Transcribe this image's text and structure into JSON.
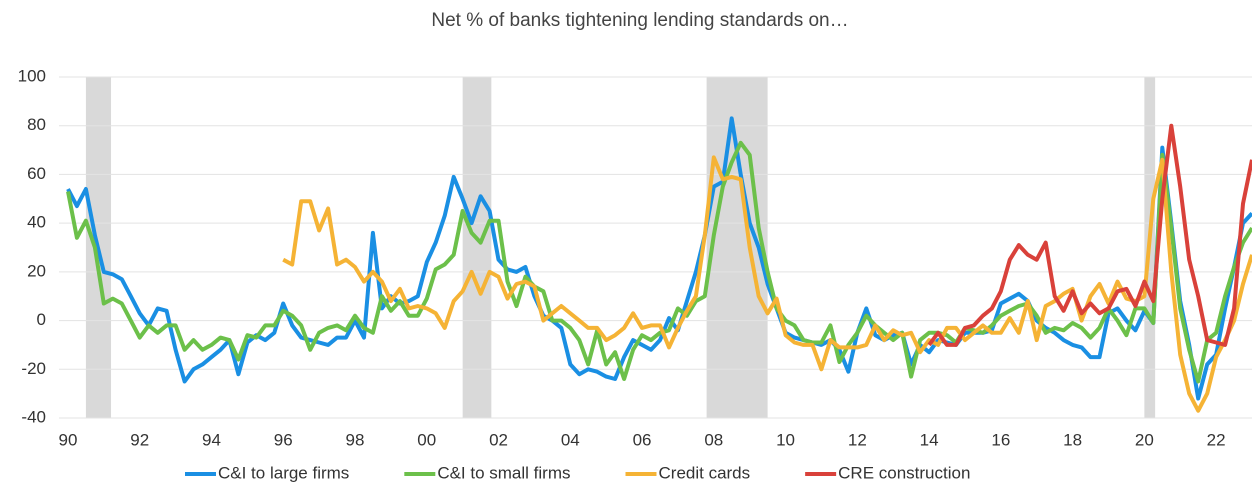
{
  "chart_data": {
    "type": "line",
    "title": "Net % of banks tightening lending standards on…",
    "x": [
      1990,
      1990.25,
      1990.5,
      1990.75,
      1991,
      1991.25,
      1991.5,
      1991.75,
      1992,
      1992.25,
      1992.5,
      1992.75,
      1993,
      1993.25,
      1993.5,
      1993.75,
      1994,
      1994.25,
      1994.5,
      1994.75,
      1995,
      1995.25,
      1995.5,
      1995.75,
      1996,
      1996.25,
      1996.5,
      1996.75,
      1997,
      1997.25,
      1997.5,
      1997.75,
      1998,
      1998.25,
      1998.5,
      1998.75,
      1999,
      1999.25,
      1999.5,
      1999.75,
      2000,
      2000.25,
      2000.5,
      2000.75,
      2001,
      2001.25,
      2001.5,
      2001.75,
      2002,
      2002.25,
      2002.5,
      2002.75,
      2003,
      2003.25,
      2003.5,
      2003.75,
      2004,
      2004.25,
      2004.5,
      2004.75,
      2005,
      2005.25,
      2005.5,
      2005.75,
      2006,
      2006.25,
      2006.5,
      2006.75,
      2007,
      2007.25,
      2007.5,
      2007.75,
      2008,
      2008.25,
      2008.5,
      2008.75,
      2009,
      2009.25,
      2009.5,
      2009.75,
      2010,
      2010.25,
      2010.5,
      2010.75,
      2011,
      2011.25,
      2011.5,
      2011.75,
      2012,
      2012.25,
      2012.5,
      2012.75,
      2013,
      2013.25,
      2013.5,
      2013.75,
      2014,
      2014.25,
      2014.5,
      2014.75,
      2015,
      2015.25,
      2015.5,
      2015.75,
      2016,
      2016.25,
      2016.5,
      2016.75,
      2017,
      2017.25,
      2017.5,
      2017.75,
      2018,
      2018.25,
      2018.5,
      2018.75,
      2019,
      2019.25,
      2019.5,
      2019.75,
      2020,
      2020.25,
      2020.5,
      2020.75,
      2021,
      2021.25,
      2021.5,
      2021.75,
      2022,
      2022.25,
      2022.5,
      2022.75,
      2023
    ],
    "series": [
      {
        "name": "C&I to large firms",
        "color": "#1a8fe3",
        "values": [
          54,
          47,
          54,
          35,
          20,
          19,
          17,
          10,
          3,
          -2,
          5,
          4,
          -12,
          -25,
          -20,
          -18,
          -15,
          -12,
          -8,
          -22,
          -9,
          -6,
          -8,
          -5,
          7,
          -2,
          -7,
          -8,
          -9,
          -10,
          -7,
          -7,
          0,
          -7,
          36,
          5,
          10,
          7,
          8,
          10,
          24,
          32,
          43,
          59,
          50,
          40,
          51,
          45,
          25,
          21,
          20,
          22,
          10,
          2,
          0,
          -3,
          -18,
          -22,
          -20,
          -21,
          -23,
          -24,
          -15,
          -8,
          -10,
          -12,
          -8,
          1,
          -4,
          8,
          20,
          35,
          55,
          57,
          83,
          60,
          40,
          30,
          15,
          5,
          -5,
          -7,
          -8,
          -9,
          -10,
          -8,
          -12,
          -21,
          -5,
          5,
          -6,
          -8,
          -6,
          -5,
          -18,
          -10,
          -13,
          -8,
          -9,
          -10,
          -5,
          -5,
          -5,
          -4,
          7,
          9,
          11,
          8,
          0,
          -3,
          -5,
          -8,
          -10,
          -11,
          -15,
          -15,
          3,
          5,
          0,
          -4,
          4,
          -1,
          71,
          40,
          8,
          -10,
          -32,
          -18,
          -14,
          5,
          22,
          40,
          44
        ]
      },
      {
        "name": "C&I to small firms",
        "color": "#6cc04a",
        "values": [
          53,
          34,
          41,
          30,
          7,
          9,
          7,
          0,
          -7,
          -2,
          -5,
          -2,
          -2,
          -12,
          -8,
          -12,
          -10,
          -7,
          -8,
          -16,
          -6,
          -7,
          -2,
          -2,
          4,
          2,
          -2,
          -12,
          -5,
          -3,
          -2,
          -4,
          2,
          -3,
          -5,
          10,
          4,
          8,
          2,
          2,
          9,
          21,
          23,
          27,
          45,
          36,
          32,
          41,
          41,
          16,
          6,
          18,
          14,
          12,
          0,
          0,
          -3,
          -8,
          -18,
          -4,
          -18,
          -13,
          -24,
          -12,
          -6,
          -8,
          -5,
          -4,
          5,
          2,
          8,
          10,
          35,
          55,
          65,
          73,
          68,
          38,
          20,
          5,
          0,
          -2,
          -8,
          -9,
          -9,
          -2,
          -17,
          -10,
          -5,
          2,
          -2,
          -5,
          -8,
          -5,
          -23,
          -8,
          -5,
          -5,
          -6,
          -9,
          -3,
          -4,
          -5,
          -2,
          2,
          4,
          6,
          7,
          2,
          -5,
          -3,
          -4,
          -1,
          -3,
          -7,
          -3,
          5,
          0,
          -6,
          5,
          5,
          -1,
          68,
          38,
          5,
          -12,
          -25,
          -8,
          -5,
          10,
          22,
          32,
          38
        ]
      },
      {
        "name": "Credit cards",
        "color": "#f5b335",
        "values": [
          null,
          null,
          null,
          null,
          null,
          null,
          null,
          null,
          null,
          null,
          null,
          null,
          null,
          null,
          null,
          null,
          null,
          null,
          null,
          null,
          null,
          null,
          null,
          null,
          25,
          23,
          49,
          49,
          37,
          46,
          23,
          25,
          22,
          16,
          20,
          16,
          8,
          13,
          5,
          6,
          5,
          3,
          -3,
          8,
          12,
          20,
          11,
          20,
          18,
          9,
          15,
          16,
          14,
          0,
          3,
          6,
          3,
          0,
          -3,
          -3,
          -8,
          -6,
          -3,
          3,
          -3,
          -2,
          -2,
          -11,
          -3,
          4,
          10,
          35,
          67,
          58,
          59,
          58,
          30,
          10,
          3,
          9,
          -6,
          -9,
          -10,
          -10,
          -20,
          -8,
          -11,
          -11,
          -11,
          -10,
          -2,
          -8,
          -4,
          -6,
          -5,
          -13,
          -8,
          -10,
          -3,
          -3,
          -8,
          -5,
          -2,
          -5,
          -5,
          1,
          -5,
          8,
          -8,
          6,
          8,
          11,
          13,
          0,
          10,
          15,
          7,
          16,
          9,
          8,
          10,
          50,
          66,
          20,
          -14,
          -30,
          -37,
          -30,
          -15,
          -8,
          0,
          15,
          27
        ]
      },
      {
        "name": "CRE construction",
        "color": "#d9413a",
        "values": [
          null,
          null,
          null,
          null,
          null,
          null,
          null,
          null,
          null,
          null,
          null,
          null,
          null,
          null,
          null,
          null,
          null,
          null,
          null,
          null,
          null,
          null,
          null,
          null,
          null,
          null,
          null,
          null,
          null,
          null,
          null,
          null,
          null,
          null,
          null,
          null,
          null,
          null,
          null,
          null,
          null,
          null,
          null,
          null,
          null,
          null,
          null,
          null,
          null,
          null,
          null,
          null,
          null,
          null,
          null,
          null,
          null,
          null,
          null,
          null,
          null,
          null,
          null,
          null,
          null,
          null,
          null,
          null,
          null,
          null,
          null,
          null,
          null,
          null,
          null,
          null,
          null,
          null,
          null,
          null,
          null,
          null,
          null,
          null,
          null,
          null,
          null,
          null,
          null,
          null,
          null,
          null,
          null,
          null,
          null,
          null,
          -10,
          -5,
          -10,
          -10,
          -3,
          -2,
          2,
          5,
          12,
          25,
          31,
          27,
          25,
          32,
          10,
          4,
          12,
          3,
          7,
          3,
          5,
          12,
          13,
          6,
          16,
          8,
          50,
          80,
          55,
          25,
          10,
          -8,
          -9,
          -10,
          5,
          48,
          66
        ]
      }
    ],
    "recessions": [
      [
        1990.5,
        1991.2
      ],
      [
        2001,
        2001.8
      ],
      [
        2007.8,
        2009.5
      ],
      [
        2020,
        2020.3
      ]
    ],
    "xlim": [
      1989.75,
      2023
    ],
    "xticks": [
      {
        "value": 1990,
        "label": "90"
      },
      {
        "value": 1992,
        "label": "92"
      },
      {
        "value": 1994,
        "label": "94"
      },
      {
        "value": 1996,
        "label": "96"
      },
      {
        "value": 1998,
        "label": "98"
      },
      {
        "value": 2000,
        "label": "00"
      },
      {
        "value": 2002,
        "label": "02"
      },
      {
        "value": 2004,
        "label": "04"
      },
      {
        "value": 2006,
        "label": "06"
      },
      {
        "value": 2008,
        "label": "08"
      },
      {
        "value": 2010,
        "label": "10"
      },
      {
        "value": 2012,
        "label": "12"
      },
      {
        "value": 2014,
        "label": "14"
      },
      {
        "value": 2016,
        "label": "16"
      },
      {
        "value": 2018,
        "label": "18"
      },
      {
        "value": 2020,
        "label": "20"
      },
      {
        "value": 2022,
        "label": "22"
      }
    ],
    "ylim": [
      -40,
      100
    ],
    "yticks": [
      100,
      80,
      60,
      40,
      20,
      0,
      -20,
      -40
    ],
    "grid": true,
    "legend": "bottom"
  }
}
